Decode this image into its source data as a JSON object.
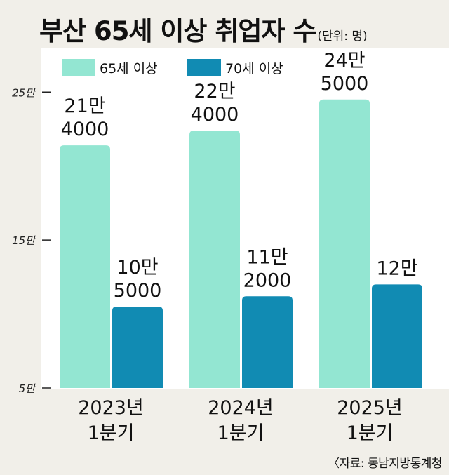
{
  "title": "부산 65세 이상 취업자 수",
  "unit": "(단위: 명)",
  "source": "〈자료: 동남지방통계청",
  "colors": {
    "age65": "#93e6d2",
    "age70": "#118bb3",
    "background": "#f1efe9",
    "panel": "#ffffff"
  },
  "chart_data": {
    "type": "bar",
    "categories": [
      [
        "2023년",
        "1분기"
      ],
      [
        "2024년",
        "1분기"
      ],
      [
        "2025년",
        "1분기"
      ]
    ],
    "series": [
      {
        "name": "65세 이상",
        "values": [
          214000,
          224000,
          245000
        ],
        "labels": [
          [
            "21만",
            "4000"
          ],
          [
            "22만",
            "4000"
          ],
          [
            "24만",
            "5000"
          ]
        ]
      },
      {
        "name": "70세 이상",
        "values": [
          105000,
          112000,
          120000
        ],
        "labels": [
          [
            "10만",
            "5000"
          ],
          [
            "11만",
            "2000"
          ],
          [
            "12만"
          ]
        ]
      }
    ],
    "yticks": [
      {
        "value": 50000,
        "label": "5만"
      },
      {
        "value": 150000,
        "label": "15만"
      },
      {
        "value": 250000,
        "label": "25만"
      }
    ],
    "ylim": [
      50000,
      280000
    ],
    "legend": "top-left",
    "grid": false
  }
}
